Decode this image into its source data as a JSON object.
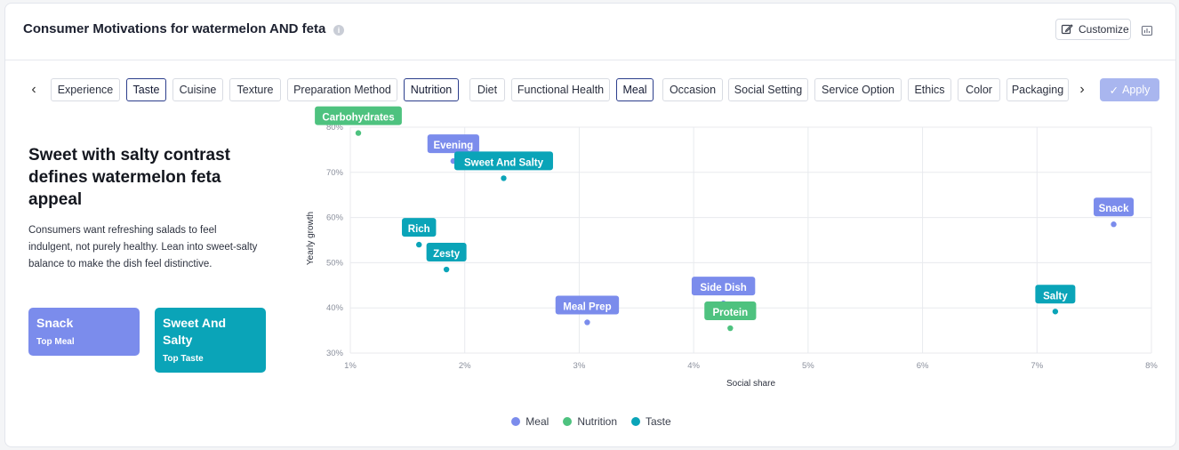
{
  "header": {
    "title": "Consumer Motivations for watermelon AND feta",
    "customize_label": "Customize"
  },
  "filters": {
    "chips": [
      {
        "label": "Experience",
        "active": false
      },
      {
        "label": "Taste",
        "active": true
      },
      {
        "label": "Cuisine",
        "active": false
      },
      {
        "label": "Texture",
        "active": false
      },
      {
        "label": "Preparation Method",
        "active": false
      },
      {
        "label": "Nutrition",
        "active": true
      },
      {
        "label": "Diet",
        "active": false
      },
      {
        "label": "Functional Health",
        "active": false
      },
      {
        "label": "Meal",
        "active": true
      },
      {
        "label": "Occasion",
        "active": false
      },
      {
        "label": "Social Setting",
        "active": false
      },
      {
        "label": "Service Option",
        "active": false
      },
      {
        "label": "Ethics",
        "active": false
      },
      {
        "label": "Color",
        "active": false
      },
      {
        "label": "Packaging",
        "active": false
      }
    ],
    "apply_label": "Apply"
  },
  "insight": {
    "title": "Sweet with salty contrast defines watermelon feta appeal",
    "body": "Consumers want refreshing salads to feel indulgent, not purely healthy. Lean into sweet-salty balance to make the dish feel distinctive.",
    "tiles": [
      {
        "value": "Snack",
        "label": "Top Meal",
        "color": "#7b8cec"
      },
      {
        "value": "Sweet And Salty",
        "label": "Top Taste",
        "color": "#0aa4b8"
      }
    ]
  },
  "colors": {
    "Meal": "#7b8cec",
    "Nutrition": "#4ec27f",
    "Taste": "#0aa4b8"
  },
  "chart_data": {
    "type": "scatter",
    "xlabel": "Social share",
    "ylabel": "Yearly growth",
    "xlim": [
      1,
      8
    ],
    "ylim": [
      30,
      80
    ],
    "x_ticks": [
      "1%",
      "2%",
      "3%",
      "4%",
      "5%",
      "6%",
      "7%",
      "8%"
    ],
    "y_ticks": [
      "30%",
      "40%",
      "50%",
      "60%",
      "70%",
      "80%"
    ],
    "grid": true,
    "legend_position": "bottom-center",
    "series": [
      {
        "name": "Meal",
        "points": [
          {
            "label": "Evening",
            "x": 1.9,
            "y": 72.5
          },
          {
            "label": "Snack",
            "x": 7.67,
            "y": 58.5
          },
          {
            "label": "Side Dish",
            "x": 4.26,
            "y": 41
          },
          {
            "label": "Meal Prep",
            "x": 3.07,
            "y": 36.8
          }
        ]
      },
      {
        "name": "Nutrition",
        "points": [
          {
            "label": "Carbohydrates",
            "x": 1.07,
            "y": 78.7
          },
          {
            "label": "Protein",
            "x": 4.32,
            "y": 35.5
          }
        ]
      },
      {
        "name": "Taste",
        "points": [
          {
            "label": "Sweet And Salty",
            "x": 2.34,
            "y": 68.7
          },
          {
            "label": "Rich",
            "x": 1.6,
            "y": 54
          },
          {
            "label": "Zesty",
            "x": 1.84,
            "y": 48.5
          },
          {
            "label": "Salty",
            "x": 7.16,
            "y": 39.2
          }
        ]
      }
    ]
  }
}
